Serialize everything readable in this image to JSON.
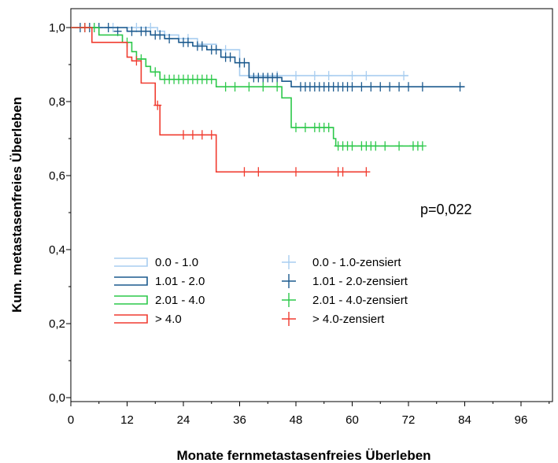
{
  "chart_data": {
    "type": "line",
    "subtype": "kaplan-meier",
    "title": "",
    "xlabel": "Monate fernmetastasenfreies Überleben",
    "ylabel": "Kum. metastasenfreies Überleben",
    "xlim": [
      0,
      108
    ],
    "ylim": [
      0,
      1.05
    ],
    "x_ticks": [
      0,
      12,
      24,
      36,
      48,
      60,
      72,
      84,
      96
    ],
    "x_tick_labels": [
      "0",
      "12",
      "24",
      "36",
      "48",
      "60",
      "72",
      "84",
      "96"
    ],
    "y_ticks": [
      0,
      0.2,
      0.4,
      0.6,
      0.8,
      1.0
    ],
    "y_tick_labels": [
      "0,0",
      "0,2",
      "0,4",
      "0,6",
      "0,8",
      "1,0"
    ],
    "grid": false,
    "legend_position": "bottom-left",
    "annotation": "p=0,022",
    "series": [
      {
        "name": "0.0 - 1.0",
        "censored_name": "0.0 - 1.0-zensiert",
        "color": "#a8cdf0",
        "steps": [
          [
            0,
            1.0
          ],
          [
            18.5,
            0.99
          ],
          [
            20,
            0.98
          ],
          [
            23,
            0.97
          ],
          [
            27,
            0.955
          ],
          [
            31,
            0.94
          ],
          [
            36,
            0.87
          ],
          [
            37,
            0.87
          ]
        ],
        "end": 72,
        "censored": [
          [
            3,
            1.0
          ],
          [
            5,
            1.0
          ],
          [
            9,
            1.0
          ],
          [
            14,
            1.0
          ],
          [
            17,
            1.0
          ],
          [
            25,
            0.97
          ],
          [
            33,
            0.94
          ],
          [
            44,
            0.87
          ],
          [
            48,
            0.87
          ],
          [
            52,
            0.87
          ],
          [
            55,
            0.87
          ],
          [
            60,
            0.87
          ],
          [
            63,
            0.87
          ],
          [
            71,
            0.87
          ]
        ]
      },
      {
        "name": "1.01 - 2.0",
        "censored_name": "1.01 - 2.0-zensiert",
        "color": "#1c5a8e",
        "steps": [
          [
            0,
            1.0
          ],
          [
            12,
            0.99
          ],
          [
            17,
            0.98
          ],
          [
            20,
            0.97
          ],
          [
            23,
            0.96
          ],
          [
            26,
            0.95
          ],
          [
            29,
            0.94
          ],
          [
            32,
            0.92
          ],
          [
            35,
            0.905
          ],
          [
            38,
            0.865
          ],
          [
            45,
            0.855
          ],
          [
            47,
            0.84
          ]
        ],
        "end": 84,
        "censored": [
          [
            2,
            1.0
          ],
          [
            4,
            1.0
          ],
          [
            6,
            1.0
          ],
          [
            8,
            1.0
          ],
          [
            10,
            0.99
          ],
          [
            13,
            0.99
          ],
          [
            15,
            0.99
          ],
          [
            16,
            0.99
          ],
          [
            18,
            0.98
          ],
          [
            19,
            0.98
          ],
          [
            21,
            0.97
          ],
          [
            24,
            0.96
          ],
          [
            25,
            0.96
          ],
          [
            27,
            0.95
          ],
          [
            28,
            0.95
          ],
          [
            30,
            0.94
          ],
          [
            31,
            0.94
          ],
          [
            33,
            0.92
          ],
          [
            34,
            0.92
          ],
          [
            36,
            0.905
          ],
          [
            37,
            0.905
          ],
          [
            39,
            0.865
          ],
          [
            40,
            0.865
          ],
          [
            41,
            0.865
          ],
          [
            42,
            0.865
          ],
          [
            43,
            0.865
          ],
          [
            44,
            0.865
          ],
          [
            49,
            0.84
          ],
          [
            50,
            0.84
          ],
          [
            51,
            0.84
          ],
          [
            52,
            0.84
          ],
          [
            53,
            0.84
          ],
          [
            54,
            0.84
          ],
          [
            55,
            0.84
          ],
          [
            56,
            0.84
          ],
          [
            57,
            0.84
          ],
          [
            58,
            0.84
          ],
          [
            59,
            0.84
          ],
          [
            60,
            0.84
          ],
          [
            62,
            0.84
          ],
          [
            64,
            0.84
          ],
          [
            66,
            0.84
          ],
          [
            68,
            0.84
          ],
          [
            70,
            0.84
          ],
          [
            72,
            0.84
          ],
          [
            75,
            0.84
          ],
          [
            83,
            0.84
          ]
        ]
      },
      {
        "name": "2.01 - 4.0",
        "censored_name": "2.01 - 4.0-zensiert",
        "color": "#2cc84a",
        "steps": [
          [
            0,
            1.0
          ],
          [
            6,
            0.98
          ],
          [
            11,
            0.96
          ],
          [
            13,
            0.935
          ],
          [
            14,
            0.915
          ],
          [
            16,
            0.895
          ],
          [
            17,
            0.88
          ],
          [
            19,
            0.86
          ],
          [
            31,
            0.84
          ],
          [
            45,
            0.81
          ],
          [
            47,
            0.73
          ],
          [
            56,
            0.7
          ],
          [
            56.5,
            0.68
          ]
        ],
        "end": 75,
        "censored": [
          [
            3,
            1.0
          ],
          [
            5,
            1.0
          ],
          [
            12,
            0.96
          ],
          [
            15,
            0.915
          ],
          [
            18,
            0.88
          ],
          [
            20,
            0.86
          ],
          [
            21,
            0.86
          ],
          [
            22,
            0.86
          ],
          [
            23,
            0.86
          ],
          [
            24,
            0.86
          ],
          [
            25,
            0.86
          ],
          [
            26,
            0.86
          ],
          [
            27,
            0.86
          ],
          [
            28,
            0.86
          ],
          [
            29,
            0.86
          ],
          [
            30,
            0.86
          ],
          [
            33,
            0.84
          ],
          [
            35,
            0.84
          ],
          [
            38,
            0.84
          ],
          [
            41,
            0.84
          ],
          [
            44,
            0.84
          ],
          [
            48,
            0.73
          ],
          [
            50,
            0.73
          ],
          [
            52,
            0.73
          ],
          [
            53,
            0.73
          ],
          [
            54,
            0.73
          ],
          [
            55,
            0.73
          ],
          [
            57,
            0.68
          ],
          [
            58,
            0.68
          ],
          [
            59,
            0.68
          ],
          [
            60,
            0.68
          ],
          [
            62,
            0.68
          ],
          [
            63,
            0.68
          ],
          [
            64,
            0.68
          ],
          [
            65,
            0.68
          ],
          [
            67,
            0.68
          ],
          [
            70,
            0.68
          ],
          [
            73,
            0.68
          ],
          [
            74,
            0.68
          ],
          [
            75,
            0.68
          ]
        ]
      },
      {
        "name": "> 4.0",
        "censored_name": "> 4.0-zensiert",
        "color": "#f03c30",
        "steps": [
          [
            0,
            1.0
          ],
          [
            4.5,
            0.96
          ],
          [
            12,
            0.92
          ],
          [
            13,
            0.91
          ],
          [
            15,
            0.85
          ],
          [
            18,
            0.79
          ],
          [
            19,
            0.71
          ],
          [
            31,
            0.61
          ]
        ],
        "end": 63,
        "censored": [
          [
            3,
            1.0
          ],
          [
            14,
            0.91
          ],
          [
            18.5,
            0.79
          ],
          [
            24,
            0.71
          ],
          [
            26,
            0.71
          ],
          [
            28,
            0.71
          ],
          [
            30,
            0.71
          ],
          [
            37,
            0.61
          ],
          [
            40,
            0.61
          ],
          [
            48,
            0.61
          ],
          [
            57,
            0.61
          ],
          [
            58,
            0.61
          ],
          [
            63,
            0.61
          ]
        ]
      }
    ]
  }
}
